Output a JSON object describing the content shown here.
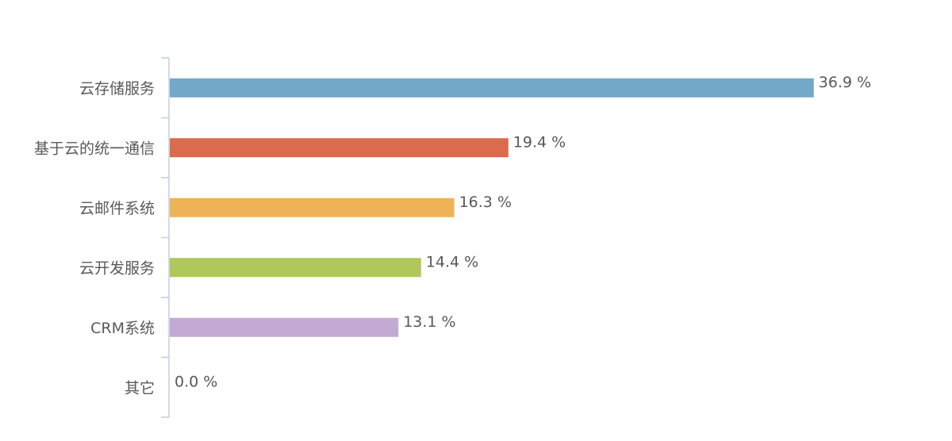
{
  "chart_data": {
    "type": "bar",
    "orientation": "horizontal",
    "categories": [
      "云存储服务",
      "基于云的统一通信",
      "云邮件系统",
      "云开发服务",
      "CRM系统",
      "其它"
    ],
    "values": [
      36.9,
      19.4,
      16.3,
      14.4,
      13.1,
      0.0
    ],
    "value_labels": [
      "36.9 %",
      "19.4 %",
      "16.3 %",
      "14.4 %",
      "13.1 %",
      "0.0 %"
    ],
    "unit": "%",
    "colors": [
      "#73a8c8",
      "#da6b4d",
      "#eeb257",
      "#b0c75a",
      "#c3aad4",
      "#8c8c8c"
    ],
    "title": "",
    "xlabel": "",
    "ylabel": "",
    "grid": false,
    "legend": "none"
  }
}
